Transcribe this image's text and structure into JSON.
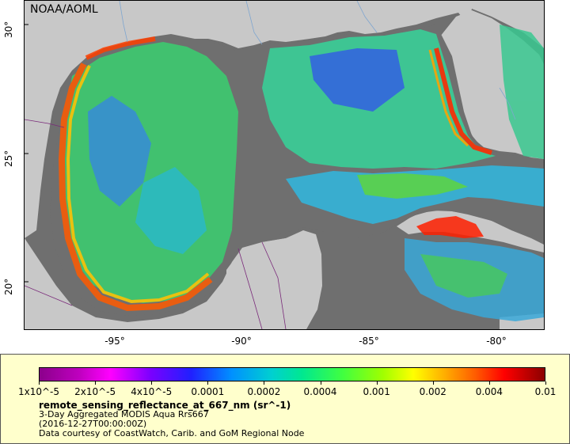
{
  "map": {
    "brand": "NOAA/AOML",
    "lat_ticks": [
      {
        "label": "30°",
        "lat": 30
      },
      {
        "label": "25°",
        "lat": 25
      },
      {
        "label": "20°",
        "lat": 20
      }
    ],
    "lon_ticks": [
      {
        "label": "-95°",
        "lon": -95
      },
      {
        "label": "-90°",
        "lon": -90
      },
      {
        "label": "-85°",
        "lon": -85
      },
      {
        "label": "-80°",
        "lon": -80
      }
    ],
    "colors": {
      "land": "#c8c8c8",
      "nodata": "#6f6f6f",
      "rivers": "#7fa6d0",
      "borders": "#7a2a7a"
    }
  },
  "legend": {
    "colorbar_labels": [
      "1x10^-5",
      "2x10^-5",
      "4x10^-5",
      "0.0001",
      "0.0002",
      "0.0004",
      "0.001",
      "0.002",
      "0.004",
      "0.01"
    ],
    "variable": "remote_sensing_reflectance_at_667_nm (sr^-1)",
    "line1": "3-Day Aggregated MODIS Aqua Rrs667",
    "line2": "(2016-12-27T00:00:00Z)",
    "line3": "Data courtesy of CoastWatch, Carib. and GoM Regional Node"
  }
}
